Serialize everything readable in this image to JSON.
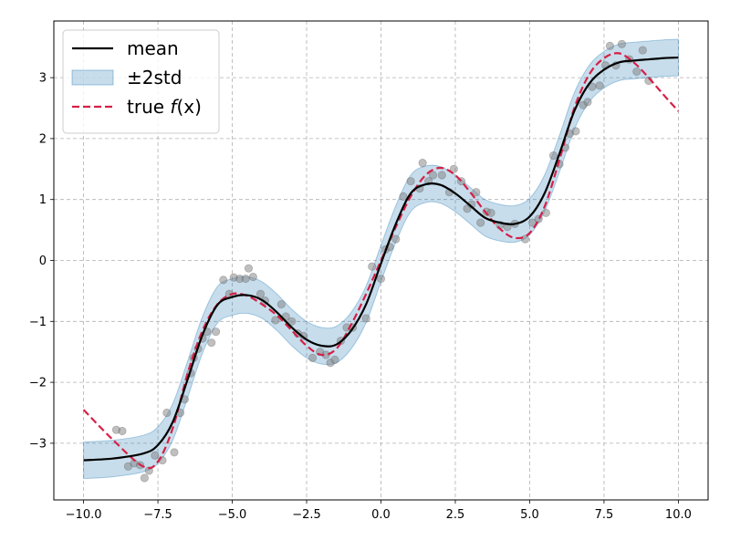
{
  "chart_data": {
    "type": "line",
    "title": "",
    "xlabel": "",
    "ylabel": "",
    "xlim": [
      -11.0,
      11.0
    ],
    "ylim": [
      -3.93,
      3.93
    ],
    "x_ticks": [
      -10.0,
      -7.5,
      -5.0,
      -2.5,
      0.0,
      2.5,
      5.0,
      7.5,
      10.0
    ],
    "x_tick_labels": [
      "−10.0",
      "−7.5",
      "−5.0",
      "−2.5",
      "0.0",
      "2.5",
      "5.0",
      "7.5",
      "10.0"
    ],
    "y_ticks": [
      -3,
      -2,
      -1,
      0,
      1,
      2,
      3
    ],
    "y_tick_labels": [
      "−3",
      "−2",
      "−1",
      "0",
      "1",
      "2",
      "3"
    ],
    "grid": true,
    "legend": {
      "location": "top-left",
      "entries": [
        {
          "label": "mean",
          "kind": "line",
          "color": "#000000"
        },
        {
          "label": "±2std",
          "kind": "band",
          "color": "#1f77b4"
        },
        {
          "label": "true",
          "label_math": "f",
          "label_math_tail": "(x)",
          "kind": "dashed",
          "color": "#d62046"
        }
      ]
    },
    "x": [
      -10.0,
      -9.0,
      -8.0,
      -7.5,
      -7.0,
      -6.5,
      -6.0,
      -5.5,
      -5.0,
      -4.5,
      -4.0,
      -3.5,
      -3.0,
      -2.5,
      -2.0,
      -1.5,
      -1.0,
      -0.5,
      0.0,
      0.5,
      1.0,
      1.5,
      2.0,
      2.5,
      3.0,
      3.5,
      4.0,
      4.5,
      5.0,
      5.5,
      6.0,
      6.5,
      7.0,
      7.5,
      8.0,
      8.5,
      9.0,
      9.5,
      10.0
    ],
    "series": [
      {
        "name": "mean",
        "role": "mean",
        "color": "#000000",
        "values": [
          -3.28,
          -3.25,
          -3.17,
          -3.03,
          -2.65,
          -1.95,
          -1.22,
          -0.73,
          -0.6,
          -0.57,
          -0.65,
          -0.85,
          -1.1,
          -1.3,
          -1.4,
          -1.38,
          -1.15,
          -0.72,
          -0.05,
          0.6,
          1.1,
          1.25,
          1.24,
          1.1,
          0.9,
          0.7,
          0.62,
          0.6,
          0.72,
          1.1,
          1.75,
          2.45,
          2.9,
          3.13,
          3.25,
          3.28,
          3.3,
          3.32,
          3.33
        ]
      },
      {
        "name": "true f(x)",
        "role": "true",
        "color": "#d62046",
        "values": [
          -2.45,
          -2.95,
          -3.38,
          -3.3,
          -2.75,
          -1.85,
          -1.15,
          -0.72,
          -0.55,
          -0.58,
          -0.72,
          -0.9,
          -1.15,
          -1.4,
          -1.55,
          -1.45,
          -1.05,
          -0.55,
          0.0,
          0.55,
          1.05,
          1.4,
          1.52,
          1.4,
          1.12,
          0.8,
          0.52,
          0.37,
          0.45,
          0.88,
          1.65,
          2.5,
          3.05,
          3.32,
          3.4,
          3.25,
          3.0,
          2.72,
          2.45
        ]
      }
    ],
    "band": {
      "name": "±2std",
      "color": "#1f77b4",
      "opacity": 0.25,
      "half_width": 0.3
    },
    "scatter": {
      "color": "#7f7f7f",
      "points": [
        [
          -8.9,
          -2.78
        ],
        [
          -8.7,
          -2.8
        ],
        [
          -8.5,
          -3.38
        ],
        [
          -8.3,
          -3.33
        ],
        [
          -8.1,
          -3.36
        ],
        [
          -7.95,
          -3.57
        ],
        [
          -7.8,
          -3.45
        ],
        [
          -7.6,
          -3.2
        ],
        [
          -7.35,
          -3.28
        ],
        [
          -7.2,
          -2.5
        ],
        [
          -6.95,
          -3.15
        ],
        [
          -6.75,
          -2.5
        ],
        [
          -6.6,
          -2.28
        ],
        [
          -6.4,
          -1.85
        ],
        [
          -6.3,
          -1.6
        ],
        [
          -6.15,
          -1.45
        ],
        [
          -6.0,
          -1.28
        ],
        [
          -5.85,
          -1.17
        ],
        [
          -5.7,
          -1.35
        ],
        [
          -5.55,
          -1.17
        ],
        [
          -5.3,
          -0.32
        ],
        [
          -5.1,
          -0.55
        ],
        [
          -4.95,
          -0.28
        ],
        [
          -4.75,
          -0.3
        ],
        [
          -4.55,
          -0.3
        ],
        [
          -4.45,
          -0.13
        ],
        [
          -4.3,
          -0.27
        ],
        [
          -4.05,
          -0.55
        ],
        [
          -3.9,
          -0.66
        ],
        [
          -3.55,
          -0.98
        ],
        [
          -3.35,
          -0.72
        ],
        [
          -3.2,
          -0.92
        ],
        [
          -3.0,
          -1.0
        ],
        [
          -2.8,
          -1.2
        ],
        [
          -2.6,
          -1.24
        ],
        [
          -2.3,
          -1.6
        ],
        [
          -2.05,
          -1.5
        ],
        [
          -1.85,
          -1.55
        ],
        [
          -1.7,
          -1.68
        ],
        [
          -1.55,
          -1.63
        ],
        [
          -1.35,
          -1.32
        ],
        [
          -1.15,
          -1.1
        ],
        [
          -0.95,
          -1.1
        ],
        [
          -0.5,
          -0.95
        ],
        [
          -0.3,
          -0.1
        ],
        [
          0.0,
          -0.3
        ],
        [
          0.15,
          0.18
        ],
        [
          0.3,
          0.22
        ],
        [
          0.5,
          0.35
        ],
        [
          0.75,
          1.05
        ],
        [
          1.0,
          1.3
        ],
        [
          1.3,
          1.18
        ],
        [
          1.4,
          1.6
        ],
        [
          1.6,
          1.3
        ],
        [
          1.75,
          1.4
        ],
        [
          2.05,
          1.4
        ],
        [
          2.3,
          1.12
        ],
        [
          2.45,
          1.5
        ],
        [
          2.7,
          1.3
        ],
        [
          2.9,
          0.85
        ],
        [
          3.05,
          0.92
        ],
        [
          3.2,
          1.12
        ],
        [
          3.35,
          0.62
        ],
        [
          3.55,
          0.8
        ],
        [
          3.7,
          0.78
        ],
        [
          4.0,
          0.58
        ],
        [
          4.25,
          0.55
        ],
        [
          4.5,
          0.6
        ],
        [
          4.85,
          0.35
        ],
        [
          5.1,
          0.62
        ],
        [
          5.3,
          0.68
        ],
        [
          5.55,
          0.78
        ],
        [
          5.8,
          1.72
        ],
        [
          6.0,
          1.58
        ],
        [
          6.2,
          1.85
        ],
        [
          6.35,
          2.08
        ],
        [
          6.55,
          2.12
        ],
        [
          6.8,
          2.55
        ],
        [
          6.95,
          2.6
        ],
        [
          7.1,
          2.85
        ],
        [
          7.35,
          2.87
        ],
        [
          7.55,
          3.2
        ],
        [
          7.7,
          3.52
        ],
        [
          7.9,
          3.2
        ],
        [
          8.1,
          3.55
        ],
        [
          8.35,
          3.3
        ],
        [
          8.6,
          3.1
        ],
        [
          8.8,
          3.45
        ],
        [
          9.0,
          2.95
        ]
      ]
    }
  }
}
